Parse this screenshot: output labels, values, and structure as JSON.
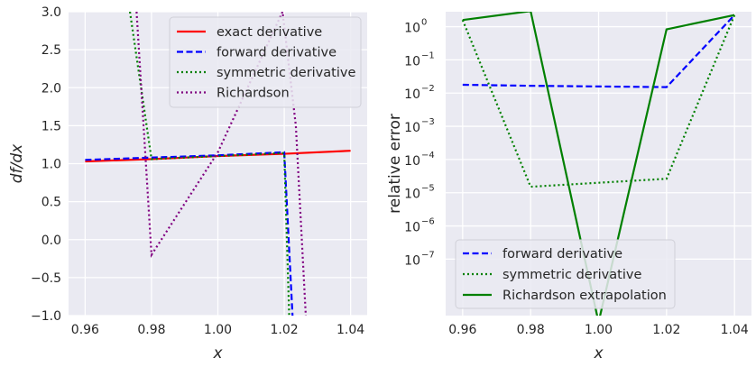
{
  "chart_data": [
    {
      "type": "line",
      "xlabel": "x",
      "ylabel": "df/dx",
      "xlim": [
        0.955,
        1.045
      ],
      "ylim": [
        -1.0,
        3.0
      ],
      "yscale": "linear",
      "grid": true,
      "legend_position": "top-right",
      "xticks": [
        "0.96",
        "0.98",
        "1.00",
        "1.02",
        "1.04"
      ],
      "yticks": [
        "−1.0",
        "−0.5",
        "0.0",
        "0.5",
        "1.0",
        "1.5",
        "2.0",
        "2.5",
        "3.0"
      ],
      "xtick_values": [
        0.96,
        0.98,
        1.0,
        1.02,
        1.04
      ],
      "ytick_values": [
        -1.0,
        -0.5,
        0.0,
        0.5,
        1.0,
        1.5,
        2.0,
        2.5,
        3.0
      ],
      "series": [
        {
          "name": "exact derivative",
          "color": "#ff0000",
          "style": "solid",
          "x": [
            0.96,
            0.98,
            1.0,
            1.02,
            1.04
          ],
          "y": [
            1.03,
            1.06,
            1.1,
            1.13,
            1.17
          ]
        },
        {
          "name": "forward derivative",
          "color": "#0000ff",
          "style": "dashed",
          "x": [
            0.96,
            0.98,
            1.0,
            1.02,
            1.0225
          ],
          "y": [
            1.05,
            1.08,
            1.11,
            1.15,
            -1.0
          ]
        },
        {
          "name": "symmetric derivative",
          "color": "#008000",
          "style": "dotted",
          "x": [
            0.9735,
            0.98,
            1.0,
            1.02,
            1.0215
          ],
          "y": [
            3.0,
            1.06,
            1.1,
            1.14,
            -1.0
          ]
        },
        {
          "name": "Richardson",
          "color": "#800080",
          "style": "dotted",
          "x": [
            0.9755,
            0.98,
            1.0,
            1.0195,
            1.0235,
            1.0265
          ],
          "y": [
            3.0,
            -0.2,
            1.15,
            3.0,
            1.5,
            -1.0
          ]
        }
      ]
    },
    {
      "type": "line",
      "xlabel": "x",
      "ylabel": "relative error",
      "xlim": [
        0.955,
        1.045
      ],
      "ylim_log10": [
        -8.7,
        0.45
      ],
      "yscale": "log",
      "grid": true,
      "legend_position": "bottom-left",
      "xticks": [
        "0.96",
        "0.98",
        "1.00",
        "1.02",
        "1.04"
      ],
      "xtick_values": [
        0.96,
        0.98,
        1.0,
        1.02,
        1.04
      ],
      "ytick_exponents": [
        "0",
        "−1",
        "−2",
        "−3",
        "−4",
        "−5",
        "−6",
        "−7"
      ],
      "ytick_values_log10": [
        0,
        -1,
        -2,
        -3,
        -4,
        -5,
        -6,
        -7
      ],
      "ytick_base": "10",
      "series": [
        {
          "name": "forward derivative",
          "color": "#0000ff",
          "style": "dashed",
          "x": [
            0.96,
            0.98,
            1.0,
            1.02,
            1.04
          ],
          "log10_y": [
            -1.75,
            -1.78,
            -1.8,
            -1.82,
            0.35
          ]
        },
        {
          "name": "symmetric derivative",
          "color": "#008000",
          "style": "dotted",
          "x": [
            0.96,
            0.98,
            1.0,
            1.02,
            1.04
          ],
          "log10_y": [
            0.2,
            -4.82,
            -4.7,
            -4.58,
            0.35
          ]
        },
        {
          "name": "Richardson extrapolation",
          "color": "#008000",
          "style": "solid",
          "x": [
            0.96,
            0.98,
            1.0,
            1.02,
            1.04
          ],
          "log10_y": [
            0.2,
            0.47,
            -8.9,
            -0.08,
            0.35
          ]
        }
      ]
    }
  ]
}
